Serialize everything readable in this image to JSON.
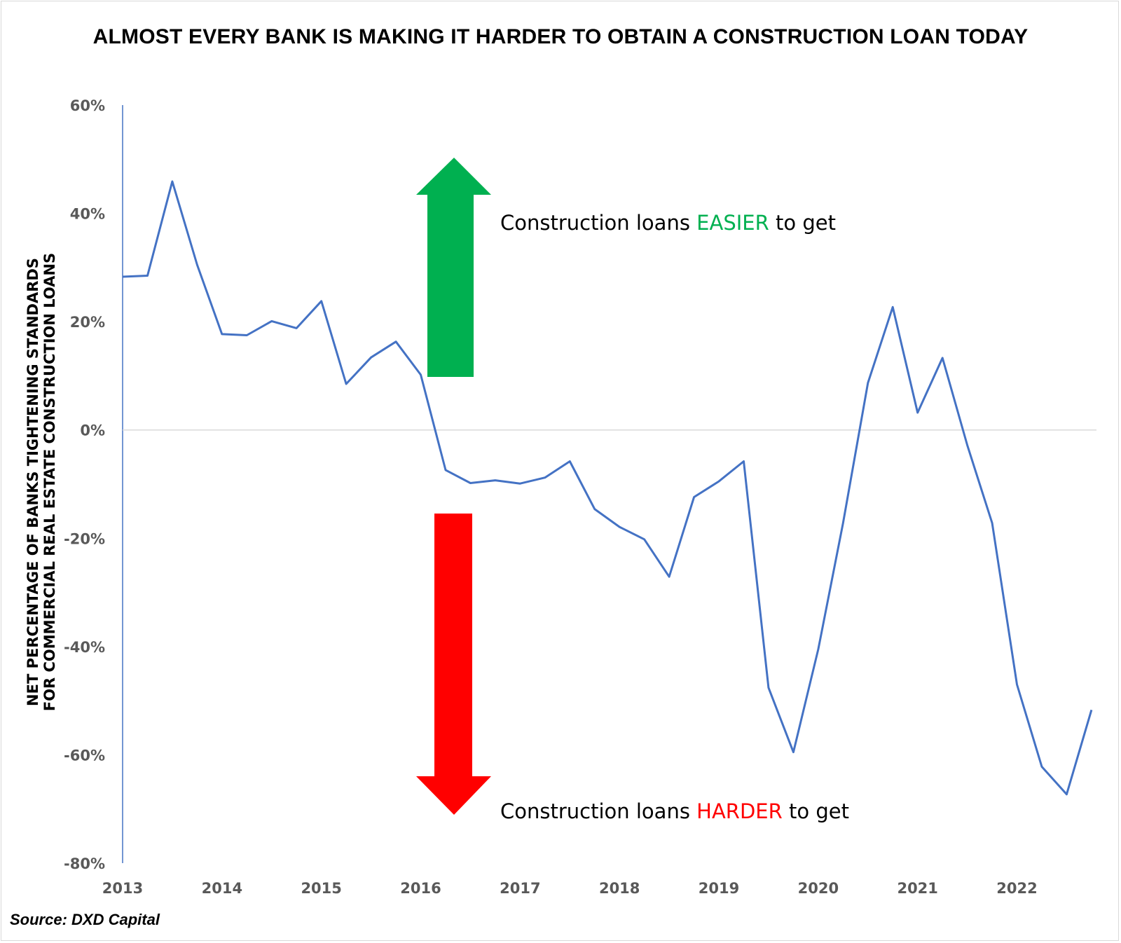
{
  "chart_data": {
    "type": "line",
    "title": "ALMOST EVERY BANK IS MAKING IT HARDER TO OBTAIN A CONSTRUCTION LOAN TODAY",
    "ylabel_lines": [
      "NET PERCENTAGE OF BANKS TIGHTENING STANDARDS",
      "FOR COMMERCIAL REAL ESTATE CONSTRUCTION LOANS"
    ],
    "xlabel": "",
    "ylim": [
      -80,
      60
    ],
    "y_ticks": [
      60,
      40,
      20,
      0,
      -20,
      -40,
      -60,
      -80
    ],
    "y_tick_labels": [
      "60%",
      "40%",
      "20%",
      "0%",
      "-20%",
      "-40%",
      "-60%",
      "-80%"
    ],
    "x_ticks": [
      2013,
      2014,
      2015,
      2016,
      2017,
      2018,
      2019,
      2020,
      2021,
      2022
    ],
    "x_tick_labels": [
      "2013",
      "2014",
      "2015",
      "2016",
      "2017",
      "2018",
      "2019",
      "2020",
      "2021",
      "2022"
    ],
    "xlim": [
      2013,
      2022.8
    ],
    "series": [
      {
        "color": "#4472c4",
        "points": [
          [
            2013.0,
            28.3
          ],
          [
            2013.25,
            28.5
          ],
          [
            2013.5,
            45.9
          ],
          [
            2013.75,
            30.5
          ],
          [
            2014.0,
            17.7
          ],
          [
            2014.25,
            17.5
          ],
          [
            2014.5,
            20.1
          ],
          [
            2014.75,
            18.8
          ],
          [
            2015.0,
            23.8
          ],
          [
            2015.25,
            8.5
          ],
          [
            2015.5,
            13.4
          ],
          [
            2015.75,
            16.3
          ],
          [
            2016.0,
            10.2
          ],
          [
            2016.25,
            -7.4
          ],
          [
            2016.5,
            -9.8
          ],
          [
            2016.75,
            -9.3
          ],
          [
            2017.0,
            -9.9
          ],
          [
            2017.25,
            -8.8
          ],
          [
            2017.5,
            -5.8
          ],
          [
            2017.75,
            -14.6
          ],
          [
            2018.0,
            -17.9
          ],
          [
            2018.25,
            -20.2
          ],
          [
            2018.5,
            -27.1
          ],
          [
            2018.75,
            -12.4
          ],
          [
            2019.0,
            -9.5
          ],
          [
            2019.25,
            -5.8
          ],
          [
            2019.5,
            -47.6
          ],
          [
            2019.75,
            -59.5
          ],
          [
            2020.0,
            -40.5
          ],
          [
            2020.25,
            -17.2
          ],
          [
            2020.5,
            8.7
          ],
          [
            2020.75,
            22.7
          ],
          [
            2021.0,
            3.2
          ],
          [
            2021.25,
            13.3
          ],
          [
            2021.5,
            -2.8
          ],
          [
            2021.75,
            -17.2
          ],
          [
            2022.0,
            -47.0
          ],
          [
            2022.25,
            -62.2
          ],
          [
            2022.5,
            -67.3
          ],
          [
            2022.75,
            -51.7
          ]
        ]
      }
    ],
    "grid": false,
    "annotations": [
      {
        "prefix": "Construction loans ",
        "highlight": "EASIER",
        "suffix": " to get",
        "highlight_color": "#00b050",
        "arrow": "up",
        "arrow_color": "#00b050"
      },
      {
        "prefix": "Construction loans ",
        "highlight": "HARDER",
        "suffix": " to get",
        "highlight_color": "#ff0000",
        "arrow": "down",
        "arrow_color": "#ff0000"
      }
    ]
  },
  "source": "Source: DXD Capital"
}
